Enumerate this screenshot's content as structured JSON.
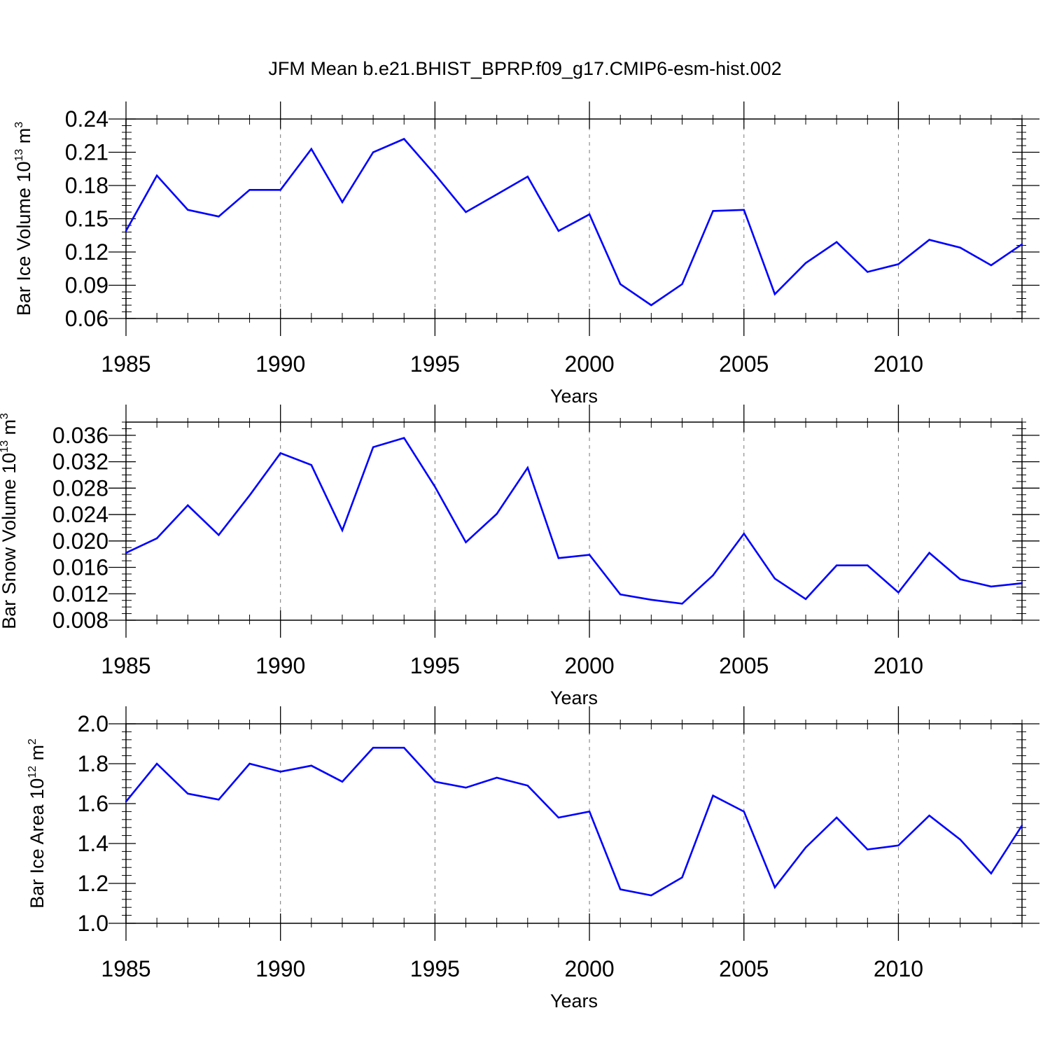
{
  "figure": {
    "title": "JFM Mean b.e21.BHIST_BPRP.f09_g17.CMIP6-esm-hist.002",
    "line_color": "#0000ff"
  },
  "chart_data": [
    {
      "type": "line",
      "xlabel": "Years",
      "ylabel": {
        "text": "Bar Ice Volume 10",
        "sup": "13",
        "unit": " m",
        "unit_sup": "3"
      },
      "xlim": [
        1985,
        2014
      ],
      "ylim": [
        0.06,
        0.24
      ],
      "x_ticks": [
        1985,
        1990,
        1995,
        2000,
        2005,
        2010
      ],
      "x_tick_labels": [
        "1985",
        "1990",
        "1995",
        "2000",
        "2005",
        "2010"
      ],
      "y_ticks": [
        0.06,
        0.09,
        0.12,
        0.15,
        0.18,
        0.21,
        0.24
      ],
      "y_tick_labels": [
        "0.06",
        "0.09",
        "0.12",
        "0.15",
        "0.18",
        "0.21",
        "0.24"
      ],
      "y_minor_step": 0.006,
      "vertical_grid": "dashed at labeled years",
      "series": [
        {
          "x": [
            1985,
            1986,
            1987,
            1988,
            1989,
            1990,
            1991,
            1992,
            1993,
            1994,
            1995,
            1996,
            1997,
            1998,
            1999,
            2000,
            2001,
            2002,
            2003,
            2004,
            2005,
            2006,
            2007,
            2008,
            2009,
            2010,
            2011,
            2012,
            2013,
            2014
          ],
          "values": [
            0.139,
            0.189,
            0.158,
            0.152,
            0.176,
            0.176,
            0.213,
            0.165,
            0.21,
            0.222,
            0.19,
            0.156,
            0.172,
            0.188,
            0.139,
            0.154,
            0.091,
            0.072,
            0.091,
            0.157,
            0.158,
            0.082,
            0.11,
            0.129,
            0.102,
            0.109,
            0.131,
            0.124,
            0.108,
            0.127
          ]
        }
      ]
    },
    {
      "type": "line",
      "xlabel": "Years",
      "ylabel": {
        "text": "Bar Snow Volume 10",
        "sup": "13",
        "unit": " m",
        "unit_sup": "3"
      },
      "xlim": [
        1985,
        2014
      ],
      "ylim": [
        0.008,
        0.038
      ],
      "x_ticks": [
        1985,
        1990,
        1995,
        2000,
        2005,
        2010
      ],
      "x_tick_labels": [
        "1985",
        "1990",
        "1995",
        "2000",
        "2005",
        "2010"
      ],
      "y_ticks": [
        0.008,
        0.012,
        0.016,
        0.02,
        0.024,
        0.028,
        0.032,
        0.036
      ],
      "y_tick_labels": [
        "0.008",
        "0.012",
        "0.016",
        "0.020",
        "0.024",
        "0.028",
        "0.032",
        "0.036"
      ],
      "y_minor_step": 0.001,
      "vertical_grid": "dashed at labeled years",
      "series": [
        {
          "x": [
            1985,
            1986,
            1987,
            1988,
            1989,
            1990,
            1991,
            1992,
            1993,
            1994,
            1995,
            1996,
            1997,
            1998,
            1999,
            2000,
            2001,
            2002,
            2003,
            2004,
            2005,
            2006,
            2007,
            2008,
            2009,
            2010,
            2011,
            2012,
            2013,
            2014
          ],
          "values": [
            0.0182,
            0.0204,
            0.0254,
            0.0209,
            0.0269,
            0.0333,
            0.0315,
            0.0216,
            0.0342,
            0.0356,
            0.0282,
            0.0198,
            0.0241,
            0.0311,
            0.0174,
            0.0179,
            0.0119,
            0.0111,
            0.0105,
            0.0148,
            0.0211,
            0.0143,
            0.0112,
            0.0163,
            0.0163,
            0.0122,
            0.0182,
            0.0142,
            0.0131,
            0.0136
          ]
        }
      ]
    },
    {
      "type": "line",
      "xlabel": "Years",
      "ylabel": {
        "text": "Bar Ice Area 10",
        "sup": "12",
        "unit": " m",
        "unit_sup": "2"
      },
      "xlim": [
        1985,
        2014
      ],
      "ylim": [
        1.0,
        2.0
      ],
      "x_ticks": [
        1985,
        1990,
        1995,
        2000,
        2005,
        2010
      ],
      "x_tick_labels": [
        "1985",
        "1990",
        "1995",
        "2000",
        "2005",
        "2010"
      ],
      "y_ticks": [
        1.0,
        1.2,
        1.4,
        1.6,
        1.8,
        2.0
      ],
      "y_tick_labels": [
        "1.0",
        "1.2",
        "1.4",
        "1.6",
        "1.8",
        "2.0"
      ],
      "y_minor_step": 0.04,
      "vertical_grid": "dashed at labeled years",
      "series": [
        {
          "x": [
            1985,
            1986,
            1987,
            1988,
            1989,
            1990,
            1991,
            1992,
            1993,
            1994,
            1995,
            1996,
            1997,
            1998,
            1999,
            2000,
            2001,
            2002,
            2003,
            2004,
            2005,
            2006,
            2007,
            2008,
            2009,
            2010,
            2011,
            2012,
            2013,
            2014
          ],
          "values": [
            1.61,
            1.8,
            1.65,
            1.62,
            1.8,
            1.76,
            1.79,
            1.71,
            1.88,
            1.88,
            1.71,
            1.68,
            1.73,
            1.69,
            1.53,
            1.56,
            1.17,
            1.14,
            1.23,
            1.64,
            1.56,
            1.18,
            1.38,
            1.53,
            1.37,
            1.39,
            1.54,
            1.42,
            1.25,
            1.49
          ]
        }
      ]
    }
  ]
}
